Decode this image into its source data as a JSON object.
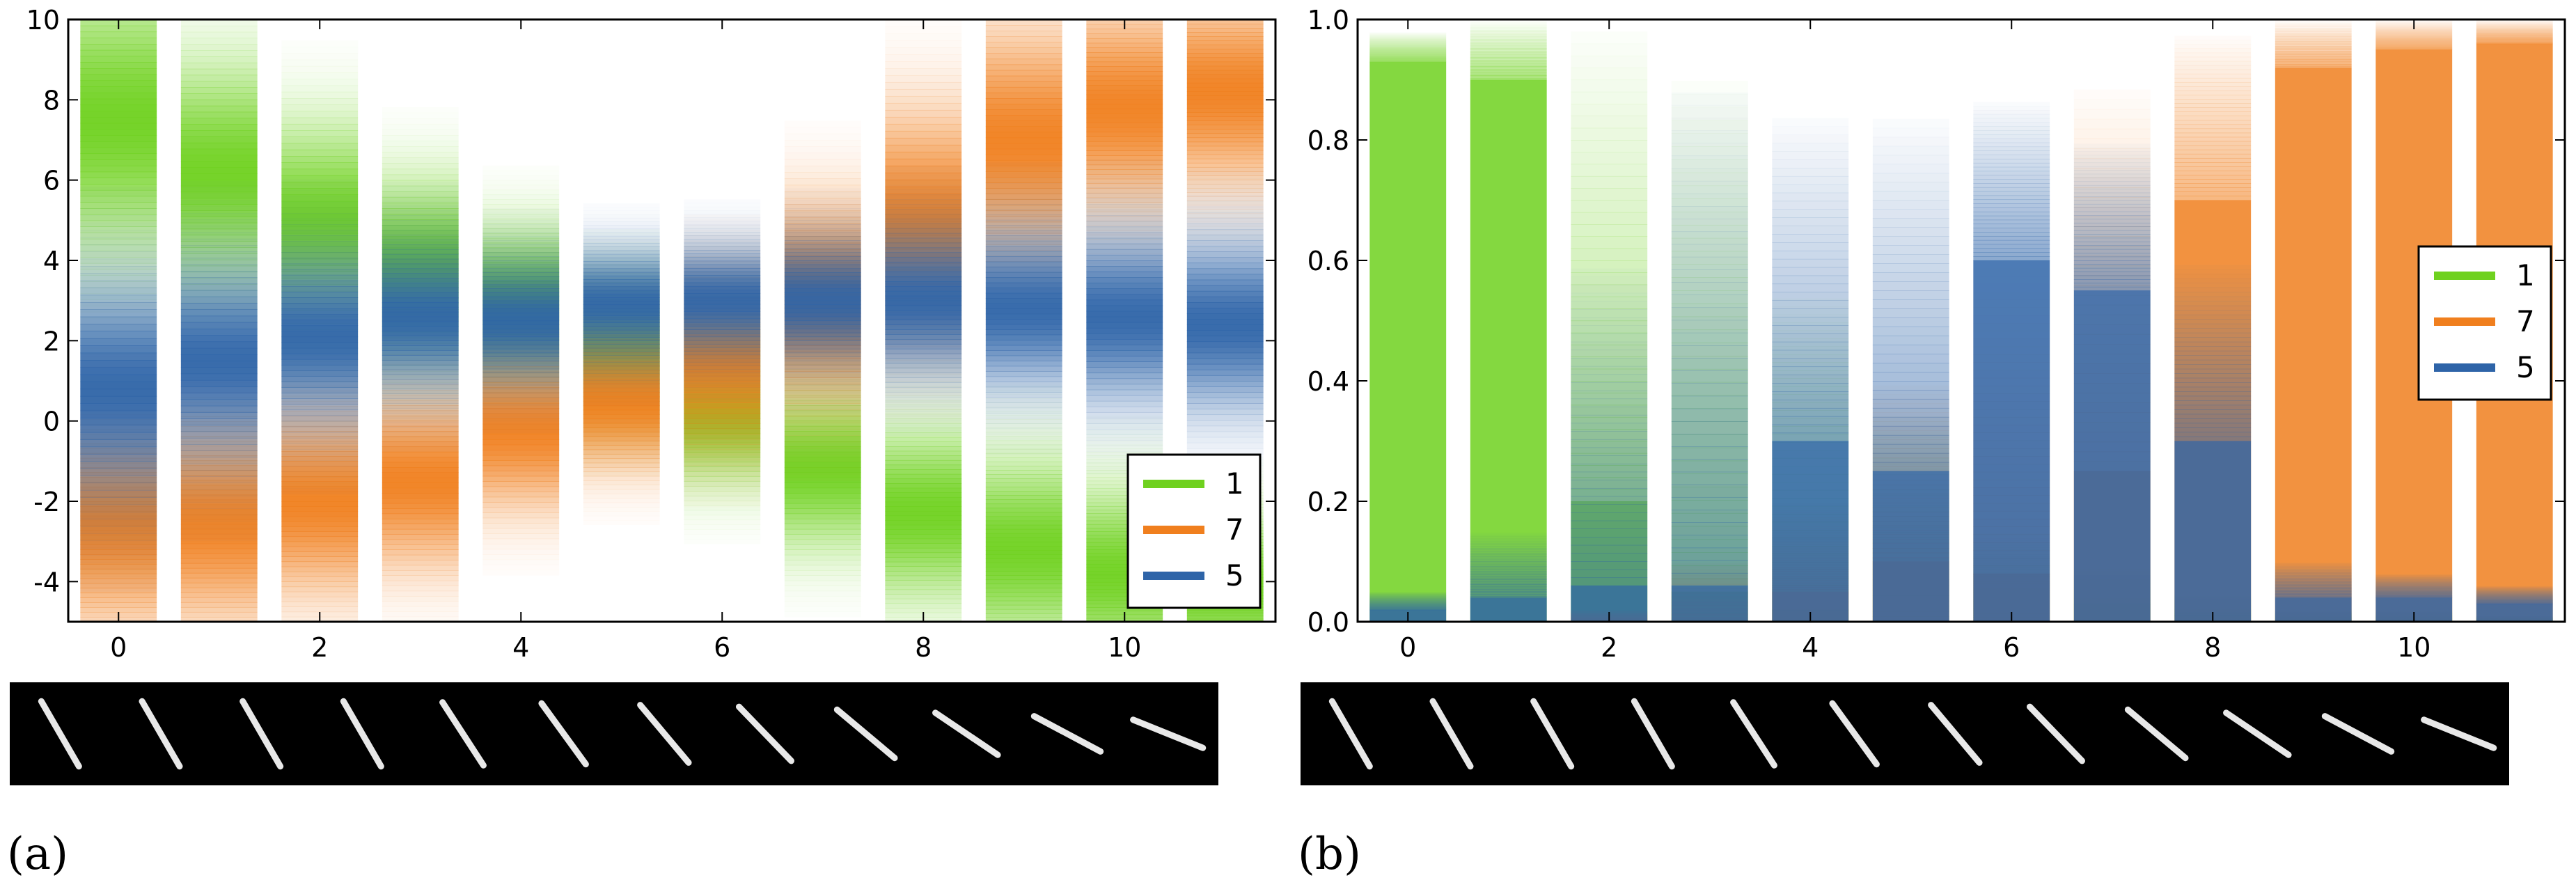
{
  "colors": {
    "1": "#6fd11f",
    "7": "#f07f1e",
    "5": "#2e64a8",
    "background": "#ffffff",
    "strip_background": "#000000"
  },
  "chart_data": [
    {
      "panel_label": "(a)",
      "type": "heatmap",
      "description_kind": "density strips per rotation step",
      "x_ticks": [
        0,
        2,
        4,
        6,
        8,
        10
      ],
      "y_ticks": [
        -4,
        -2,
        0,
        2,
        4,
        6,
        8,
        10
      ],
      "xlim": [
        -0.5,
        11.5
      ],
      "ylim": [
        -5,
        10
      ],
      "grid": false,
      "legend_position": "lower-right",
      "legend": [
        {
          "label": "1",
          "color": "#6fd11f"
        },
        {
          "label": "7",
          "color": "#f07f1e"
        },
        {
          "label": "5",
          "color": "#2e64a8"
        }
      ],
      "x": [
        0,
        1,
        2,
        3,
        4,
        5,
        6,
        7,
        8,
        9,
        10,
        11
      ],
      "series": [
        {
          "name": "1",
          "center": [
            7.5,
            6.2,
            5.0,
            3.9,
            3.0,
            1.7,
            0.3,
            -1.2,
            -2.3,
            -3.2,
            -3.8,
            -4.2
          ],
          "spread": [
            2.2,
            1.8,
            1.6,
            1.4,
            1.2,
            1.1,
            1.2,
            1.3,
            1.4,
            1.5,
            1.4,
            1.2
          ]
        },
        {
          "name": "7",
          "center": [
            -2.6,
            -2.5,
            -2.0,
            -1.5,
            -0.2,
            0.5,
            1.5,
            3.0,
            5.0,
            7.0,
            7.8,
            8.2
          ],
          "spread": [
            1.6,
            1.6,
            1.5,
            1.4,
            1.3,
            1.1,
            1.3,
            1.6,
            1.8,
            1.8,
            1.6,
            1.5
          ]
        },
        {
          "name": "5",
          "center": [
            0.8,
            1.5,
            2.1,
            2.6,
            2.5,
            2.9,
            3.0,
            3.0,
            3.0,
            2.8,
            2.6,
            2.4
          ],
          "spread": [
            1.8,
            1.6,
            1.4,
            1.2,
            1.0,
            0.9,
            0.9,
            1.0,
            1.2,
            1.3,
            1.4,
            1.4
          ]
        }
      ],
      "digit_strip": {
        "count": 12,
        "angles_deg": [
          -30,
          -30,
          -30,
          -30,
          -33,
          -36,
          -40,
          -44,
          -50,
          -56,
          -62,
          -68
        ]
      }
    },
    {
      "panel_label": "(b)",
      "type": "heatmap",
      "description_kind": "probability strips per rotation step",
      "x_ticks": [
        0,
        2,
        4,
        6,
        8,
        10
      ],
      "y_ticks": [
        0.0,
        0.2,
        0.4,
        0.6,
        0.8,
        1.0
      ],
      "xlim": [
        -0.5,
        11.5
      ],
      "ylim": [
        0,
        1
      ],
      "grid": false,
      "legend_position": "right",
      "legend": [
        {
          "label": "1",
          "color": "#6fd11f"
        },
        {
          "label": "7",
          "color": "#f07f1e"
        },
        {
          "label": "5",
          "color": "#2e64a8"
        }
      ],
      "x": [
        0,
        1,
        2,
        3,
        4,
        5,
        6,
        7,
        8,
        9,
        10,
        11
      ],
      "series": [
        {
          "name": "1",
          "solid_top": [
            0.93,
            0.9,
            0.2,
            0.05,
            0.02,
            0.0,
            0.0,
            0.03,
            0.01,
            0.0,
            0.0,
            0.0
          ],
          "fade_top": [
            0.98,
            1.0,
            1.0,
            0.92,
            0.55,
            0.35,
            0.15,
            0.1,
            0.05,
            0.02,
            0.02,
            0.01
          ]
        },
        {
          "name": "7",
          "solid_top": [
            0.0,
            0.0,
            0.0,
            0.0,
            0.05,
            0.1,
            0.08,
            0.25,
            0.7,
            0.92,
            0.95,
            0.96
          ],
          "fade_top": [
            0.0,
            0.0,
            0.02,
            0.1,
            0.2,
            0.4,
            0.6,
            0.9,
            0.98,
            1.0,
            1.0,
            1.0
          ]
        },
        {
          "name": "5",
          "solid_top": [
            0.02,
            0.04,
            0.06,
            0.06,
            0.3,
            0.25,
            0.6,
            0.55,
            0.3,
            0.04,
            0.04,
            0.03
          ],
          "fade_top": [
            0.05,
            0.15,
            0.6,
            0.9,
            0.85,
            0.85,
            0.87,
            0.8,
            0.6,
            0.1,
            0.08,
            0.06
          ]
        }
      ],
      "digit_strip": {
        "count": 12,
        "angles_deg": [
          -30,
          -30,
          -30,
          -30,
          -33,
          -36,
          -40,
          -44,
          -50,
          -56,
          -62,
          -68
        ]
      }
    }
  ]
}
